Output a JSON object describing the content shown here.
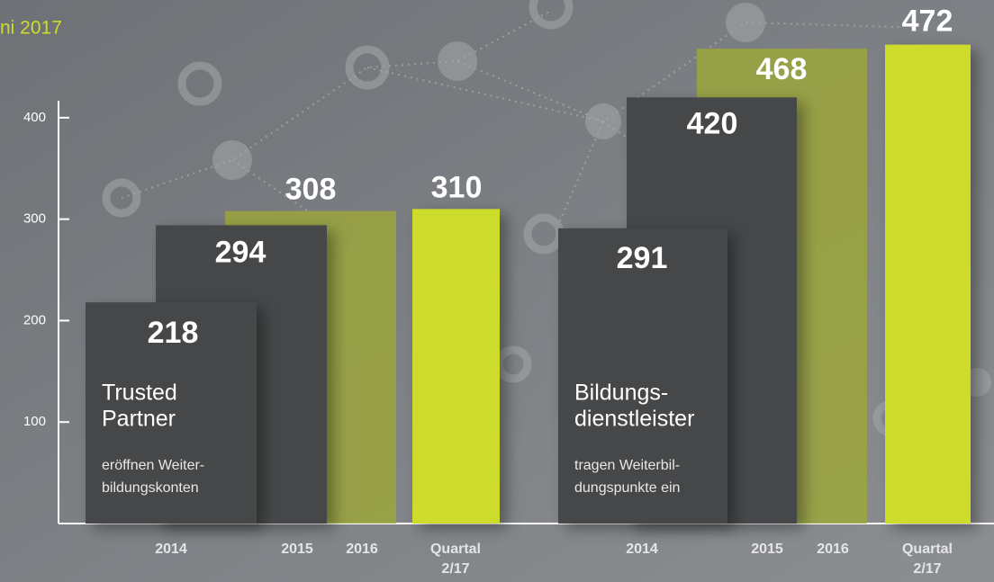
{
  "chart_data": {
    "type": "bar",
    "title": "ni 2017",
    "ylim": [
      0,
      516
    ],
    "yticks": [
      100,
      200,
      300,
      400
    ],
    "colors": [
      "#454649",
      "#454649",
      "#9ba63c",
      "#cddc2a"
    ],
    "groups": [
      {
        "label": [
          "Trusted",
          "Partner"
        ],
        "description": [
          "eröffnen Weiter-",
          "bildungskonten"
        ],
        "categories": [
          "2014",
          "2015",
          "2016",
          "Quartal 2/17"
        ],
        "values": [
          218,
          294,
          308,
          310
        ]
      },
      {
        "label": [
          "Bildungs-",
          "dienstleister"
        ],
        "description": [
          "tragen Weiterbil-",
          "dungspunkte ein"
        ],
        "categories": [
          "2014",
          "2015",
          "2016",
          "Quartal 2/17"
        ],
        "values": [
          291,
          420,
          468,
          472
        ]
      }
    ]
  }
}
